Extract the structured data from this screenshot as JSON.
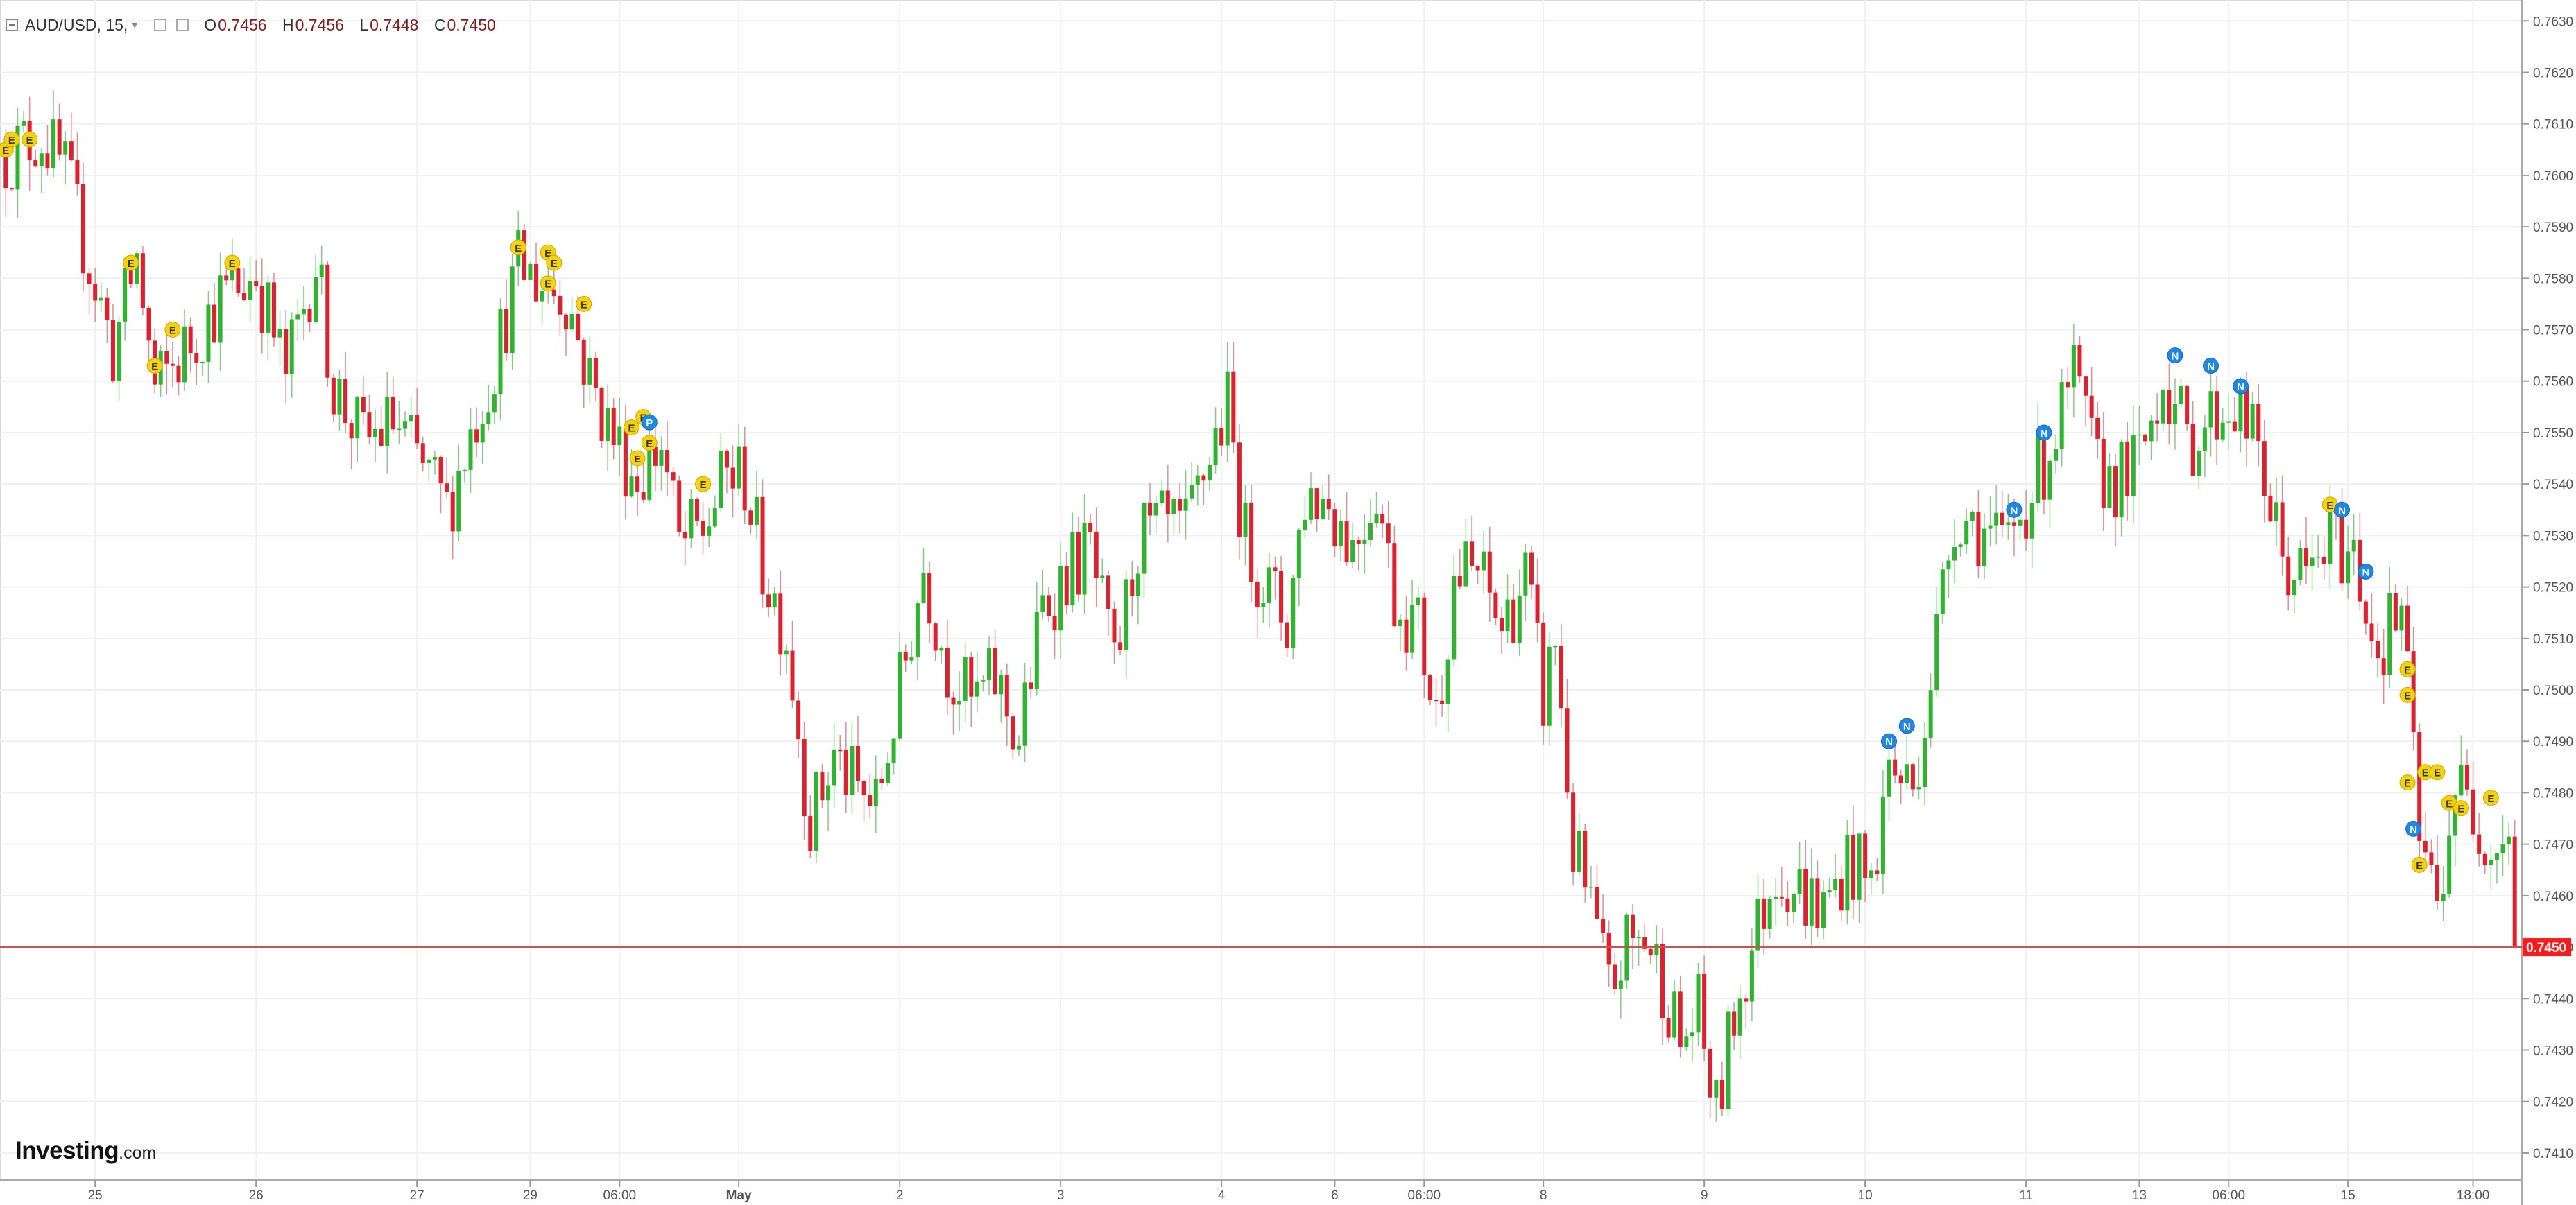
{
  "legend": {
    "symbol": "AUD/USD, 15,",
    "open_label": "O",
    "open": "0.7456",
    "high_label": "H",
    "high": "0.7456",
    "low_label": "L",
    "low": "0.7448",
    "close_label": "C",
    "close": "0.7450"
  },
  "logo": {
    "brand": "Investing",
    "domain": ".com"
  },
  "colors": {
    "up": "#2db52d",
    "down": "#e0202c",
    "price_line": "#ff3b3b",
    "event_e": "#f5d20a",
    "event_n": "#1e88e5",
    "event_p": "#1e88e5"
  },
  "chart_data": {
    "type": "candlestick",
    "title": "AUD/USD, 15,",
    "ylim": [
      0.7405,
      0.7633
    ],
    "y_ticks": [
      "0.7630",
      "0.7620",
      "0.7610",
      "0.7600",
      "0.7590",
      "0.7580",
      "0.7570",
      "0.7560",
      "0.7550",
      "0.7540",
      "0.7530",
      "0.7520",
      "0.7510",
      "0.7500",
      "0.7490",
      "0.7480",
      "0.7470",
      "0.7460",
      "0.7450",
      "0.7440",
      "0.7430",
      "0.7420",
      "0.7410"
    ],
    "x_ticks": [
      {
        "label": "25",
        "i": 15
      },
      {
        "label": "26",
        "i": 42
      },
      {
        "label": "27",
        "i": 69
      },
      {
        "label": "29",
        "i": 88
      },
      {
        "label": "06:00",
        "i": 103
      },
      {
        "label": "May",
        "i": 123
      },
      {
        "label": "2",
        "i": 150
      },
      {
        "label": "3",
        "i": 177
      },
      {
        "label": "4",
        "i": 204
      },
      {
        "label": "6",
        "i": 223
      },
      {
        "label": "06:00",
        "i": 238
      },
      {
        "label": "8",
        "i": 258
      },
      {
        "label": "9",
        "i": 285
      },
      {
        "label": "10",
        "i": 312
      },
      {
        "label": "11",
        "i": 339
      },
      {
        "label": "13",
        "i": 358
      },
      {
        "label": "06:00",
        "i": 373
      },
      {
        "label": "15",
        "i": 393
      },
      {
        "label": "18:00",
        "i": 414
      }
    ],
    "price_path": [
      [
        0,
        0.7604
      ],
      [
        6,
        0.7608
      ],
      [
        10,
        0.76
      ],
      [
        14,
        0.7583
      ],
      [
        18,
        0.7566
      ],
      [
        22,
        0.7584
      ],
      [
        25,
        0.7558
      ],
      [
        30,
        0.7566
      ],
      [
        36,
        0.7576
      ],
      [
        42,
        0.7581
      ],
      [
        47,
        0.7561
      ],
      [
        52,
        0.7584
      ],
      [
        55,
        0.7559
      ],
      [
        60,
        0.7548
      ],
      [
        65,
        0.7552
      ],
      [
        70,
        0.7543
      ],
      [
        74,
        0.7535
      ],
      [
        78,
        0.755
      ],
      [
        82,
        0.7564
      ],
      [
        86,
        0.7582
      ],
      [
        90,
        0.7579
      ],
      [
        94,
        0.7577
      ],
      [
        98,
        0.756
      ],
      [
        102,
        0.7549
      ],
      [
        106,
        0.7541
      ],
      [
        110,
        0.7548
      ],
      [
        113,
        0.7528
      ],
      [
        117,
        0.7531
      ],
      [
        121,
        0.7542
      ],
      [
        124,
        0.7541
      ],
      [
        127,
        0.7524
      ],
      [
        131,
        0.7511
      ],
      [
        135,
        0.7474
      ],
      [
        139,
        0.7487
      ],
      [
        143,
        0.748
      ],
      [
        146,
        0.7477
      ],
      [
        150,
        0.75
      ],
      [
        154,
        0.7524
      ],
      [
        158,
        0.7505
      ],
      [
        162,
        0.7497
      ],
      [
        166,
        0.7502
      ],
      [
        170,
        0.749
      ],
      [
        174,
        0.7516
      ],
      [
        178,
        0.7523
      ],
      [
        182,
        0.7527
      ],
      [
        186,
        0.7503
      ],
      [
        190,
        0.7529
      ],
      [
        194,
        0.7531
      ],
      [
        198,
        0.753
      ],
      [
        202,
        0.7546
      ],
      [
        205,
        0.7555
      ],
      [
        208,
        0.7529
      ],
      [
        212,
        0.7519
      ],
      [
        215,
        0.7513
      ],
      [
        218,
        0.7538
      ],
      [
        222,
        0.7537
      ],
      [
        226,
        0.7528
      ],
      [
        230,
        0.754
      ],
      [
        233,
        0.7518
      ],
      [
        237,
        0.7512
      ],
      [
        240,
        0.7495
      ],
      [
        243,
        0.7522
      ],
      [
        247,
        0.7523
      ],
      [
        251,
        0.7512
      ],
      [
        255,
        0.7522
      ],
      [
        258,
        0.7498
      ],
      [
        260,
        0.751
      ],
      [
        263,
        0.7469
      ],
      [
        266,
        0.7457
      ],
      [
        269,
        0.7441
      ],
      [
        272,
        0.745
      ],
      [
        275,
        0.7452
      ],
      [
        278,
        0.7444
      ],
      [
        281,
        0.7431
      ],
      [
        284,
        0.7437
      ],
      [
        287,
        0.7417
      ],
      [
        290,
        0.7437
      ],
      [
        293,
        0.745
      ],
      [
        297,
        0.7466
      ],
      [
        301,
        0.7461
      ],
      [
        305,
        0.7457
      ],
      [
        309,
        0.7467
      ],
      [
        313,
        0.7462
      ],
      [
        316,
        0.7485
      ],
      [
        320,
        0.7481
      ],
      [
        323,
        0.7503
      ],
      [
        327,
        0.7535
      ],
      [
        331,
        0.7532
      ],
      [
        335,
        0.7527
      ],
      [
        339,
        0.7537
      ],
      [
        343,
        0.7547
      ],
      [
        347,
        0.756
      ],
      [
        351,
        0.7542
      ],
      [
        355,
        0.7541
      ],
      [
        358,
        0.7544
      ],
      [
        362,
        0.7562
      ],
      [
        366,
        0.7548
      ],
      [
        370,
        0.7553
      ],
      [
        374,
        0.7556
      ],
      [
        378,
        0.7546
      ],
      [
        382,
        0.7525
      ],
      [
        386,
        0.7521
      ],
      [
        390,
        0.7529
      ],
      [
        394,
        0.7526
      ],
      [
        398,
        0.7508
      ],
      [
        402,
        0.7516
      ],
      [
        405,
        0.7471
      ],
      [
        408,
        0.7458
      ],
      [
        411,
        0.7482
      ],
      [
        414,
        0.7476
      ],
      [
        418,
        0.747
      ],
      [
        420,
        0.7475
      ],
      [
        421,
        0.745
      ]
    ],
    "last_price": "0.7450",
    "events": [
      {
        "t": "E",
        "i": 0,
        "p": 0.7605
      },
      {
        "t": "E",
        "i": 1,
        "p": 0.7607
      },
      {
        "t": "E",
        "i": 4,
        "p": 0.7607
      },
      {
        "t": "E",
        "i": 21,
        "p": 0.7583
      },
      {
        "t": "E",
        "i": 25,
        "p": 0.7563
      },
      {
        "t": "E",
        "i": 28,
        "p": 0.757
      },
      {
        "t": "E",
        "i": 38,
        "p": 0.7583
      },
      {
        "t": "E",
        "i": 86,
        "p": 0.7586
      },
      {
        "t": "E",
        "i": 91,
        "p": 0.7585
      },
      {
        "t": "E",
        "i": 92,
        "p": 0.7583
      },
      {
        "t": "E",
        "i": 91,
        "p": 0.7579
      },
      {
        "t": "E",
        "i": 97,
        "p": 0.7575
      },
      {
        "t": "E",
        "i": 105,
        "p": 0.7551
      },
      {
        "t": "E",
        "i": 107,
        "p": 0.7553
      },
      {
        "t": "E",
        "i": 108,
        "p": 0.7548
      },
      {
        "t": "E",
        "i": 106,
        "p": 0.7545
      },
      {
        "t": "P",
        "i": 108,
        "p": 0.7552
      },
      {
        "t": "E",
        "i": 117,
        "p": 0.754
      },
      {
        "t": "N",
        "i": 316,
        "p": 0.749
      },
      {
        "t": "N",
        "i": 319,
        "p": 0.7493
      },
      {
        "t": "N",
        "i": 337,
        "p": 0.7535
      },
      {
        "t": "N",
        "i": 342,
        "p": 0.755
      },
      {
        "t": "N",
        "i": 364,
        "p": 0.7565
      },
      {
        "t": "N",
        "i": 370,
        "p": 0.7563
      },
      {
        "t": "N",
        "i": 375,
        "p": 0.7559
      },
      {
        "t": "E",
        "i": 390,
        "p": 0.7536
      },
      {
        "t": "N",
        "i": 392,
        "p": 0.7535
      },
      {
        "t": "N",
        "i": 396,
        "p": 0.7523
      },
      {
        "t": "E",
        "i": 403,
        "p": 0.7504
      },
      {
        "t": "E",
        "i": 403,
        "p": 0.7499
      },
      {
        "t": "E",
        "i": 403,
        "p": 0.7482
      },
      {
        "t": "N",
        "i": 404,
        "p": 0.7473
      },
      {
        "t": "E",
        "i": 405,
        "p": 0.7466
      },
      {
        "t": "E",
        "i": 406,
        "p": 0.7484
      },
      {
        "t": "E",
        "i": 408,
        "p": 0.7484
      },
      {
        "t": "E",
        "i": 410,
        "p": 0.7478
      },
      {
        "t": "E",
        "i": 412,
        "p": 0.7477
      },
      {
        "t": "E",
        "i": 417,
        "p": 0.7479
      }
    ]
  }
}
